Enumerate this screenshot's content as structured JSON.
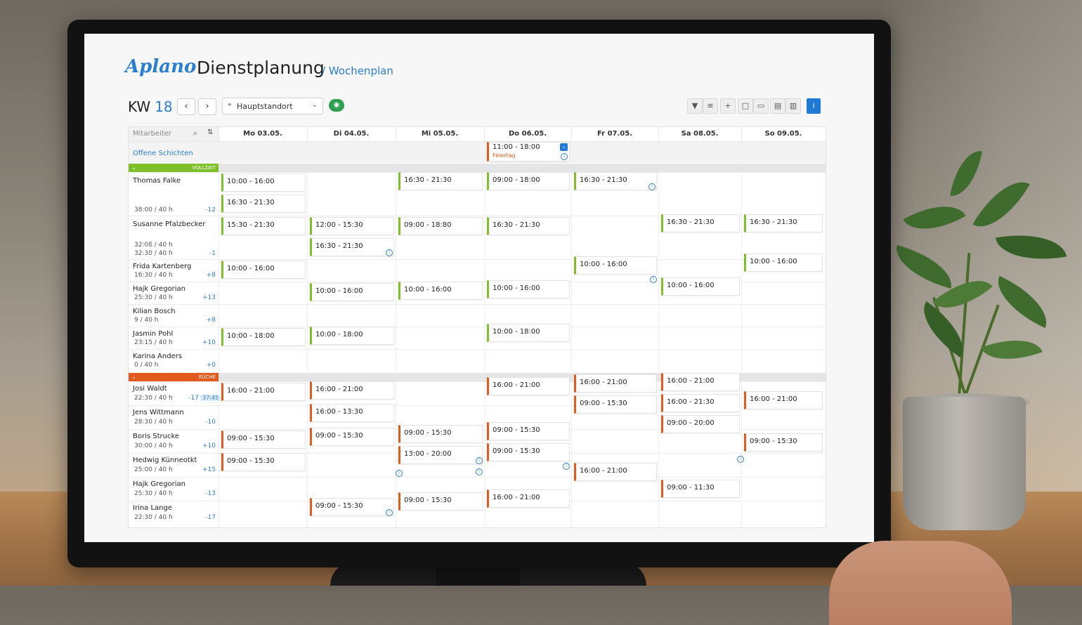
{
  "app": {
    "logo": "Aplano",
    "title": "Dienstplanung",
    "breadcrumb": "/ Wochenplan"
  },
  "toolbar": {
    "week_label": "KW",
    "week_number": "18",
    "prev": "‹",
    "next": "›",
    "location": "Hauptstandort",
    "tools": [
      "filter-icon",
      "list-icon",
      "plus-icon",
      "square-icon",
      "calendar-icon",
      "grid-icon",
      "panel-icon",
      "info-icon"
    ]
  },
  "grid": {
    "search_placeholder": "Mitarbeiter",
    "days": [
      "Mo 03.05.",
      "Di 04.05.",
      "Mi 05.05.",
      "Do 06.05.",
      "Fr 07.05.",
      "Sa 08.05.",
      "So 09.05."
    ],
    "open_shifts_label": "Offene Schichten",
    "open_shift": {
      "time": "11:00 - 18:00",
      "note": "Feiertag"
    },
    "groups": [
      {
        "name": "VOLLZEIT",
        "color": "#7fbf2a"
      },
      {
        "name": "KÜCHE",
        "color": "#e25a1c"
      }
    ],
    "employees_vollzeit": [
      {
        "name": "Thomas Falke",
        "hours": "38:00 / 40 h",
        "diff": "-12"
      },
      {
        "name": "Susanne Pfalzbecker",
        "hours": "32:30 / 40 h",
        "hours_extra": "32:0ß / 40 h",
        "diff": "-1"
      },
      {
        "name": "Frida Kartenberg",
        "hours": "16:30 / 40 h",
        "diff": "+8"
      },
      {
        "name": "Hajk Gregorian",
        "hours": "25:30 / 40 h",
        "diff": "+13"
      },
      {
        "name": "Kilian Bosch",
        "hours": "9 / 40 h",
        "diff": "+8"
      },
      {
        "name": "Jasmin Pohl",
        "hours": "23:15 / 40 h",
        "diff": "+10"
      },
      {
        "name": "Karina Anders",
        "hours": "0 / 40 h",
        "diff": "+0"
      }
    ],
    "employees_kueche": [
      {
        "name": "Josi Waldt",
        "hours": "22:30 / 40 h",
        "diff": "-17",
        "pill": "37:45"
      },
      {
        "name": "Jens Wittmann",
        "hours": "28:30 / 40 h",
        "diff": "-10"
      },
      {
        "name": "Boris Strucke",
        "hours": "30:00 / 40 h",
        "diff": "+10"
      },
      {
        "name": "Hedwig Künneotkt",
        "hours": "25:00 / 40 h",
        "diff": "+15"
      },
      {
        "name": "Hajk Gregorian",
        "hours": "25:30 / 40 h",
        "diff": "-13"
      },
      {
        "name": "Irina Lange",
        "hours": "22:30 / 40 h",
        "diff": "-17"
      }
    ],
    "shifts": {
      "s1": "10:00 - 16:00",
      "s2": "16:30 - 21:30",
      "s3": "09:00 - 18:00",
      "s4": "16:30 - 21:30",
      "s5": "16:30 - 21:30",
      "s6": "15:30 - 21:30",
      "s7": "12:00 - 15:30",
      "s8": "09:00 - 18:80",
      "s9": "16:30 - 21:30",
      "s10": "16:30 - 21:30",
      "s11": "16:30 - 21:30",
      "s12": "16:30 - 21:30",
      "s13": "10:00 - 16:00",
      "s14": "10:00 - 16:00",
      "s15": "10:00 - 16:00",
      "s16": "10:00 - 16:00",
      "s17": "10:00 - 16:00",
      "s18": "10:00 - 16:00",
      "s19": "10:00 - 16:00",
      "s20": "10:00 - 18:00",
      "s21": "10:00 - 18:00",
      "s22": "10:00 - 18:00",
      "k1": "16:00 - 21:00",
      "k2": "16:00 - 21:00",
      "k3": "16:00 - 21:00",
      "k4": "16:00 - 21:00",
      "k5": "16:00 - 21:00",
      "k6": "16:00 - 13:30",
      "k7": "09:00 - 15:30",
      "k8": "16:00 - 21:30",
      "k9": "16:00 - 21:00",
      "k10": "09:00 - 15:30",
      "k11": "09:00 - 15:30",
      "k12": "09:00 - 15:30",
      "k13": "09:00 - 20:00",
      "k14": "09:00 - 15:30",
      "k15": "13:00 - 20:00",
      "k16": "09:00 - 15:30",
      "k17": "09:00 - 15:30",
      "k18": "16:00 - 21:00",
      "k19": "09:00 - 11:30",
      "k20": "09:00 - 15:30",
      "k21": "09:00 - 15:30",
      "k22": "16:00 - 21:00"
    }
  }
}
